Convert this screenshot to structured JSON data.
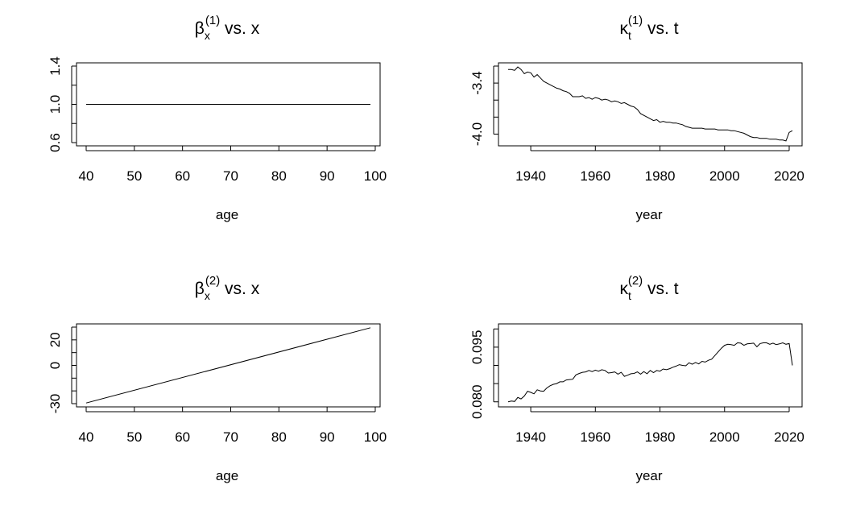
{
  "chart_data": [
    {
      "type": "line",
      "title": {
        "symbol": "β",
        "sub": "x",
        "sup": "(1)",
        "rest": " vs. x"
      },
      "xlabel": "age",
      "ylabel": "",
      "xlim": [
        40,
        99
      ],
      "ylim": [
        0.6,
        1.4
      ],
      "xticks": [
        "40",
        "50",
        "60",
        "70",
        "80",
        "90",
        "100"
      ],
      "yticks": [
        "0.6",
        "1.0",
        "1.4"
      ],
      "yticks_minor": [
        0.6,
        0.8,
        1.0,
        1.2,
        1.4
      ],
      "series": [
        {
          "name": "beta1",
          "x": [
            40,
            99
          ],
          "y": [
            1.0,
            1.0
          ]
        }
      ]
    },
    {
      "type": "line",
      "title": {
        "symbol": "κ",
        "sub": "t",
        "sup": "(1)",
        "rest": " vs. t"
      },
      "xlabel": "year",
      "ylabel": "",
      "xlim": [
        1933,
        2021
      ],
      "ylim": [
        -4.1,
        -3.2
      ],
      "xticks": [
        "1940",
        "1960",
        "1980",
        "2000",
        "2020"
      ],
      "yticks": [
        "-4.0",
        "-3.4"
      ],
      "yticks_minor": [
        -4.0,
        -3.8,
        -3.6,
        -3.4,
        -3.2
      ],
      "series": [
        {
          "name": "kappa1",
          "x": [
            1933,
            1934,
            1935,
            1936,
            1937,
            1938,
            1939,
            1940,
            1941,
            1942,
            1943,
            1944,
            1945,
            1946,
            1947,
            1948,
            1949,
            1950,
            1951,
            1952,
            1953,
            1954,
            1955,
            1956,
            1957,
            1958,
            1959,
            1960,
            1961,
            1962,
            1963,
            1964,
            1965,
            1966,
            1967,
            1968,
            1969,
            1970,
            1971,
            1972,
            1973,
            1974,
            1975,
            1976,
            1977,
            1978,
            1979,
            1980,
            1981,
            1982,
            1983,
            1984,
            1985,
            1986,
            1987,
            1988,
            1989,
            1990,
            1991,
            1992,
            1993,
            1994,
            1995,
            1996,
            1997,
            1998,
            1999,
            2000,
            2001,
            2002,
            2003,
            2004,
            2005,
            2006,
            2007,
            2008,
            2009,
            2010,
            2011,
            2012,
            2013,
            2014,
            2015,
            2016,
            2017,
            2018,
            2019,
            2020,
            2021
          ],
          "y": [
            -3.24,
            -3.24,
            -3.25,
            -3.21,
            -3.24,
            -3.29,
            -3.27,
            -3.28,
            -3.33,
            -3.3,
            -3.34,
            -3.38,
            -3.4,
            -3.42,
            -3.44,
            -3.46,
            -3.47,
            -3.49,
            -3.5,
            -3.52,
            -3.56,
            -3.56,
            -3.56,
            -3.55,
            -3.58,
            -3.57,
            -3.59,
            -3.57,
            -3.58,
            -3.6,
            -3.59,
            -3.6,
            -3.62,
            -3.61,
            -3.62,
            -3.64,
            -3.63,
            -3.65,
            -3.67,
            -3.68,
            -3.71,
            -3.76,
            -3.78,
            -3.8,
            -3.82,
            -3.84,
            -3.83,
            -3.86,
            -3.85,
            -3.86,
            -3.86,
            -3.87,
            -3.87,
            -3.88,
            -3.89,
            -3.91,
            -3.92,
            -3.93,
            -3.93,
            -3.93,
            -3.93,
            -3.94,
            -3.94,
            -3.94,
            -3.94,
            -3.95,
            -3.95,
            -3.95,
            -3.95,
            -3.96,
            -3.96,
            -3.97,
            -3.98,
            -3.99,
            -4.01,
            -4.03,
            -4.04,
            -4.04,
            -4.05,
            -4.05,
            -4.05,
            -4.06,
            -4.06,
            -4.06,
            -4.07,
            -4.07,
            -4.08,
            -3.98,
            -3.96
          ]
        }
      ]
    },
    {
      "type": "line",
      "title": {
        "symbol": "β",
        "sub": "x",
        "sup": "(2)",
        "rest": " vs. x"
      },
      "xlabel": "age",
      "ylabel": "",
      "xlim": [
        40,
        99
      ],
      "ylim": [
        -30,
        30
      ],
      "xticks": [
        "40",
        "50",
        "60",
        "70",
        "80",
        "90",
        "100"
      ],
      "yticks": [
        "-30",
        "0",
        "20"
      ],
      "yticks_minor": [
        -30,
        -20,
        -10,
        0,
        10,
        20,
        30
      ],
      "series": [
        {
          "name": "beta2",
          "x": [
            40,
            99
          ],
          "y": [
            -29.5,
            29.5
          ]
        }
      ]
    },
    {
      "type": "line",
      "title": {
        "symbol": "κ",
        "sub": "t",
        "sup": "(2)",
        "rest": " vs. t"
      },
      "xlabel": "year",
      "ylabel": "",
      "xlim": [
        1933,
        2021
      ],
      "ylim": [
        0.0795,
        0.1005
      ],
      "xticks": [
        "1940",
        "1960",
        "1980",
        "2000",
        "2020"
      ],
      "yticks": [
        "0.080",
        "0.095"
      ],
      "yticks_minor": [
        0.08,
        0.085,
        0.09,
        0.095,
        0.1
      ],
      "series": [
        {
          "name": "kappa2",
          "x": [
            1933,
            1934,
            1935,
            1936,
            1937,
            1938,
            1939,
            1940,
            1941,
            1942,
            1943,
            1944,
            1945,
            1946,
            1947,
            1948,
            1949,
            1950,
            1951,
            1952,
            1953,
            1954,
            1955,
            1956,
            1957,
            1958,
            1959,
            1960,
            1961,
            1962,
            1963,
            1964,
            1965,
            1966,
            1967,
            1968,
            1969,
            1970,
            1971,
            1972,
            1973,
            1974,
            1975,
            1976,
            1977,
            1978,
            1979,
            1980,
            1981,
            1982,
            1983,
            1984,
            1985,
            1986,
            1987,
            1988,
            1989,
            1990,
            1991,
            1992,
            1993,
            1994,
            1995,
            1996,
            1997,
            1998,
            1999,
            2000,
            2001,
            2002,
            2003,
            2004,
            2005,
            2006,
            2007,
            2008,
            2009,
            2010,
            2011,
            2012,
            2013,
            2014,
            2015,
            2016,
            2017,
            2018,
            2019,
            2020,
            2021
          ],
          "y": [
            0.08,
            0.0802,
            0.0801,
            0.0812,
            0.0808,
            0.0816,
            0.0829,
            0.0826,
            0.0822,
            0.0833,
            0.083,
            0.0829,
            0.0838,
            0.0844,
            0.0848,
            0.085,
            0.0855,
            0.0855,
            0.086,
            0.0861,
            0.0862,
            0.0874,
            0.0878,
            0.0881,
            0.0882,
            0.0886,
            0.0883,
            0.0887,
            0.0884,
            0.0888,
            0.0886,
            0.0879,
            0.088,
            0.0882,
            0.0876,
            0.0881,
            0.087,
            0.0873,
            0.0877,
            0.0878,
            0.0882,
            0.0876,
            0.0883,
            0.0877,
            0.0886,
            0.088,
            0.0886,
            0.0884,
            0.089,
            0.0888,
            0.0891,
            0.0895,
            0.0898,
            0.0902,
            0.09,
            0.0899,
            0.0907,
            0.0903,
            0.0908,
            0.0904,
            0.0911,
            0.0909,
            0.0914,
            0.0917,
            0.0927,
            0.0937,
            0.0947,
            0.0955,
            0.0958,
            0.0957,
            0.0955,
            0.0962,
            0.0961,
            0.0955,
            0.0959,
            0.096,
            0.0961,
            0.0951,
            0.096,
            0.0962,
            0.0962,
            0.0958,
            0.0961,
            0.0957,
            0.0959,
            0.0962,
            0.0958,
            0.096,
            0.09
          ]
        }
      ]
    }
  ]
}
